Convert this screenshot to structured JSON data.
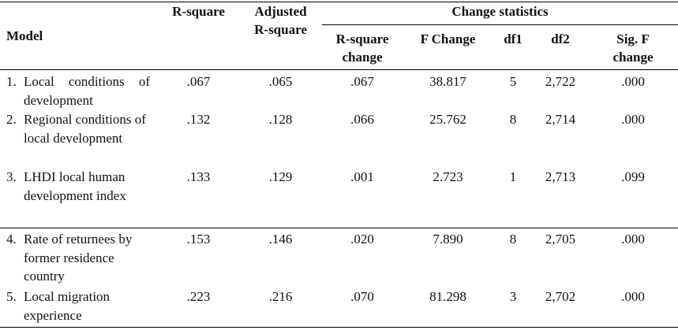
{
  "table": {
    "headers": {
      "model": "Model",
      "r_square": "R-square",
      "adjusted_r_square": "Adjusted R-square",
      "change_statistics": "Change statistics",
      "r_square_change": "R-square change",
      "f_change": "F Change",
      "df1": "df1",
      "df2": "df2",
      "sig_f_change": "Sig. F change"
    },
    "rows": [
      {
        "num": "1.",
        "model": "Local conditions of development",
        "r_square": ".067",
        "adjusted_r_square": ".065",
        "r_square_change": ".067",
        "f_change": "38.817",
        "df1": "5",
        "df2": "2,722",
        "sig_f_change": ".000"
      },
      {
        "num": "2.",
        "model": "Regional conditions of local development",
        "r_square": ".132",
        "adjusted_r_square": ".128",
        "r_square_change": ".066",
        "f_change": "25.762",
        "df1": "8",
        "df2": "2,714",
        "sig_f_change": ".000"
      },
      {
        "num": "3.",
        "model": "LHDI local human development index",
        "r_square": ".133",
        "adjusted_r_square": ".129",
        "r_square_change": ".001",
        "f_change": "2.723",
        "df1": "1",
        "df2": "2,713",
        "sig_f_change": ".099"
      },
      {
        "num": "4.",
        "model": "Rate of returnees by former residence country",
        "r_square": ".153",
        "adjusted_r_square": ".146",
        "r_square_change": ".020",
        "f_change": "7.890",
        "df1": "8",
        "df2": "2,705",
        "sig_f_change": ".000"
      },
      {
        "num": "5.",
        "model": "Local migration experience",
        "r_square": ".223",
        "adjusted_r_square": ".216",
        "r_square_change": ".070",
        "f_change": "81.298",
        "df1": "3",
        "df2": "2,702",
        "sig_f_change": ".000"
      }
    ]
  }
}
